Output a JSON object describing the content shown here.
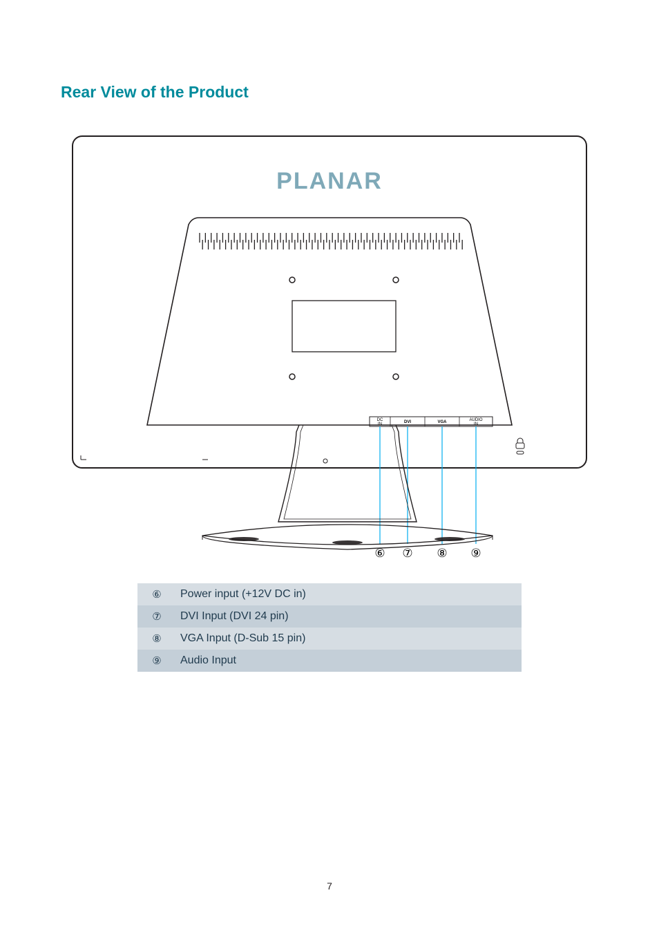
{
  "page_number": "7",
  "heading": {
    "text": "Rear View of the Product",
    "color": "#008b9c"
  },
  "diagram": {
    "brand_text": "PLANAR",
    "brand_color": "#7fa9b8",
    "outline_color": "#231f20",
    "leader_color": "#00adef",
    "port_labels": {
      "dc": "DC\nIN",
      "dvi": "DVI",
      "vga": "VGA",
      "audio": "AUDIO\nIN"
    },
    "leader_numbers": [
      "⑥",
      "⑦",
      "⑧",
      "⑨"
    ]
  },
  "legend": {
    "row_color_a": "#d6dde3",
    "row_color_b": "#c4cfd8",
    "text_color": "#1f3a4d",
    "rows": [
      {
        "num": "⑥",
        "label": "Power input (+12V DC in)"
      },
      {
        "num": "⑦",
        "label": "DVI Input (DVI 24 pin)"
      },
      {
        "num": "⑧",
        "label": "VGA Input (D-Sub 15 pin)"
      },
      {
        "num": "⑨",
        "label": "Audio Input"
      }
    ]
  }
}
